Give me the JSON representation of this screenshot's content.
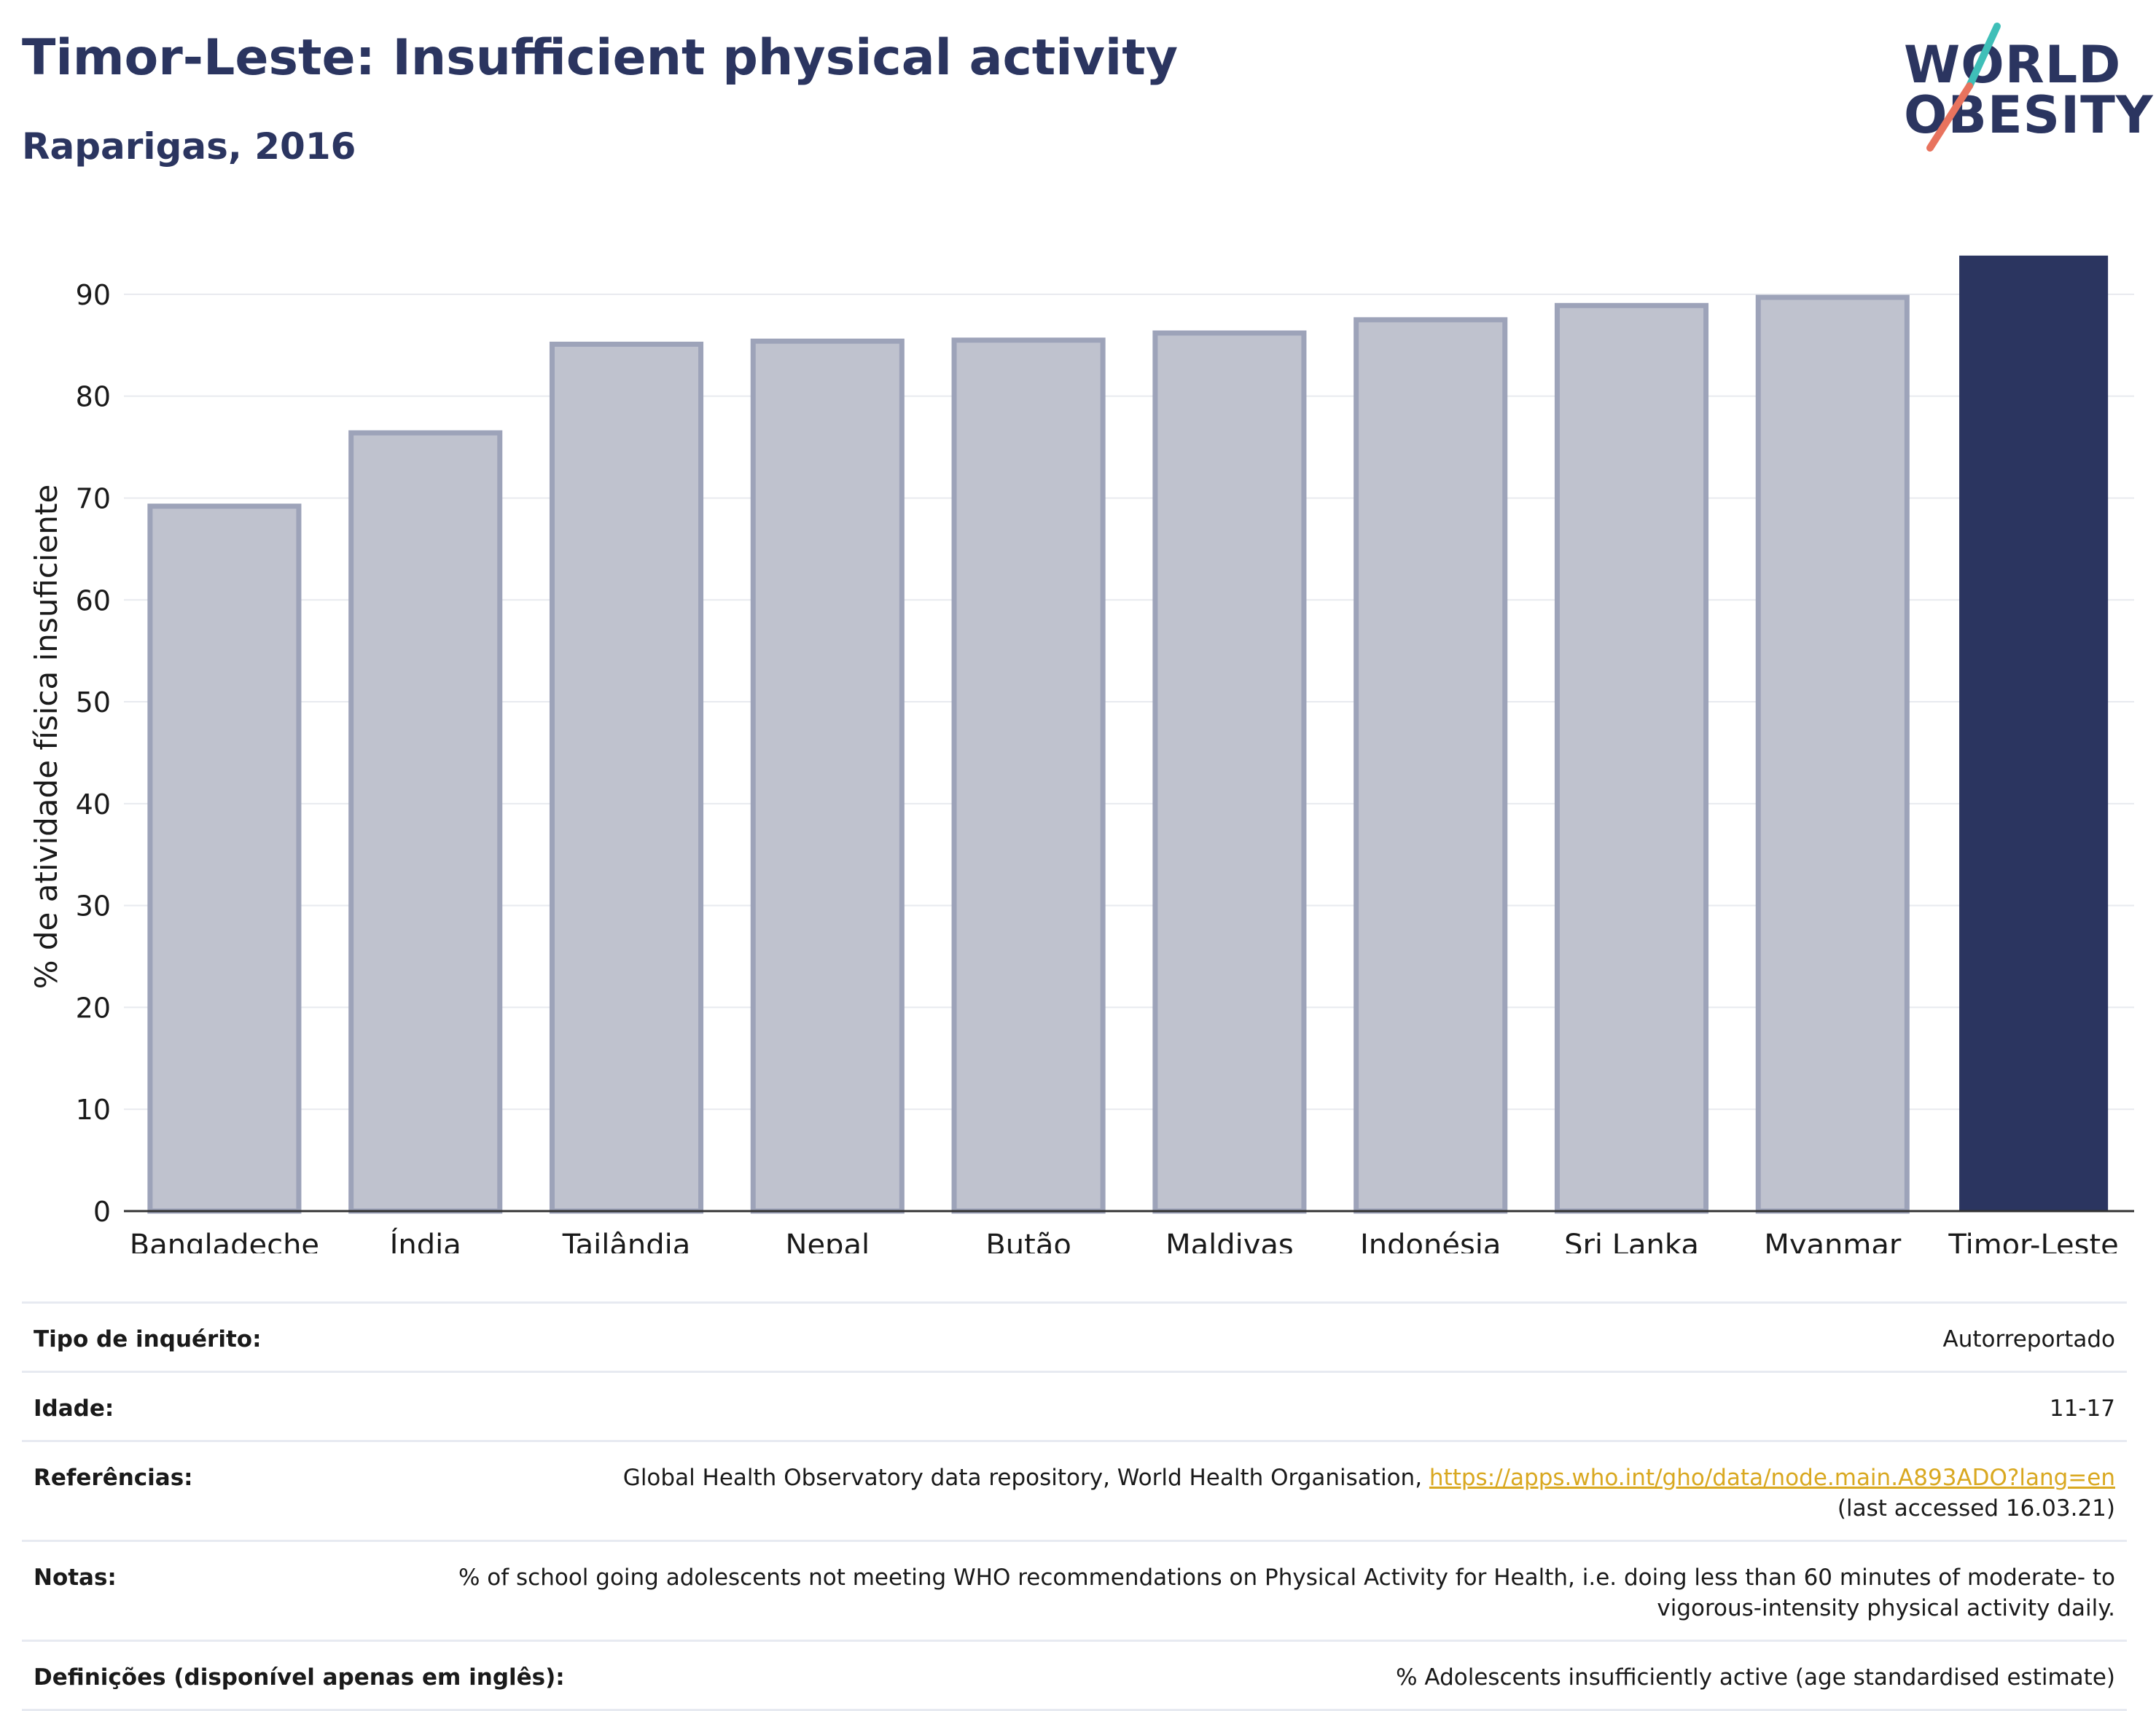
{
  "header": {
    "title": "Timor-Leste: Insufficient physical activity",
    "subtitle": "Raparigas, 2016"
  },
  "logo": {
    "line1": "WORLD",
    "line2": "OBESITY",
    "accent_colors": [
      "#3fbfb8",
      "#e8735e"
    ]
  },
  "colors": {
    "highlight": "#2b3560",
    "others_fill": "#bfc2ce",
    "others_stroke": "#9da3b9",
    "text": "#2b3560"
  },
  "chart_data": {
    "type": "bar",
    "categories": [
      "Bangladeche",
      "Índia",
      "Tailândia",
      "Nepal",
      "Butão",
      "Maldivas",
      "Indonésia",
      "Sri Lanka",
      "Myanmar",
      "Timor-Leste"
    ],
    "values": [
      69.2,
      76.4,
      85.1,
      85.4,
      85.5,
      86.2,
      87.5,
      88.9,
      89.7,
      93.8
    ],
    "highlight_category": "Timor-Leste",
    "ylabel": "% de atividade física insuficiente",
    "xlabel": "",
    "ylim": [
      0,
      96
    ],
    "yticks": [
      0,
      10,
      20,
      30,
      40,
      50,
      60,
      70,
      80,
      90
    ],
    "grid": "horizontal"
  },
  "info": [
    {
      "label": "Tipo de inquérito:",
      "value": "Autorreportado"
    },
    {
      "label": "Idade:",
      "value": "11-17"
    },
    {
      "label": "Referências:",
      "value": "Global Health Observatory data repository, World Health Organisation, ",
      "link": "https://apps.who.int/gho/data/node.main.A893ADO?lang=en",
      "value_after": "(last accessed 16.03.21)"
    },
    {
      "label": "Notas:",
      "value": "% of school going adolescents not meeting WHO recommendations on Physical Activity for Health, i.e. doing less than 60 minutes of moderate- to vigorous-intensity physical activity daily."
    },
    {
      "label": "Definições (disponível apenas em inglês):",
      "value": "% Adolescents insufficiently active (age standardised estimate)"
    }
  ]
}
